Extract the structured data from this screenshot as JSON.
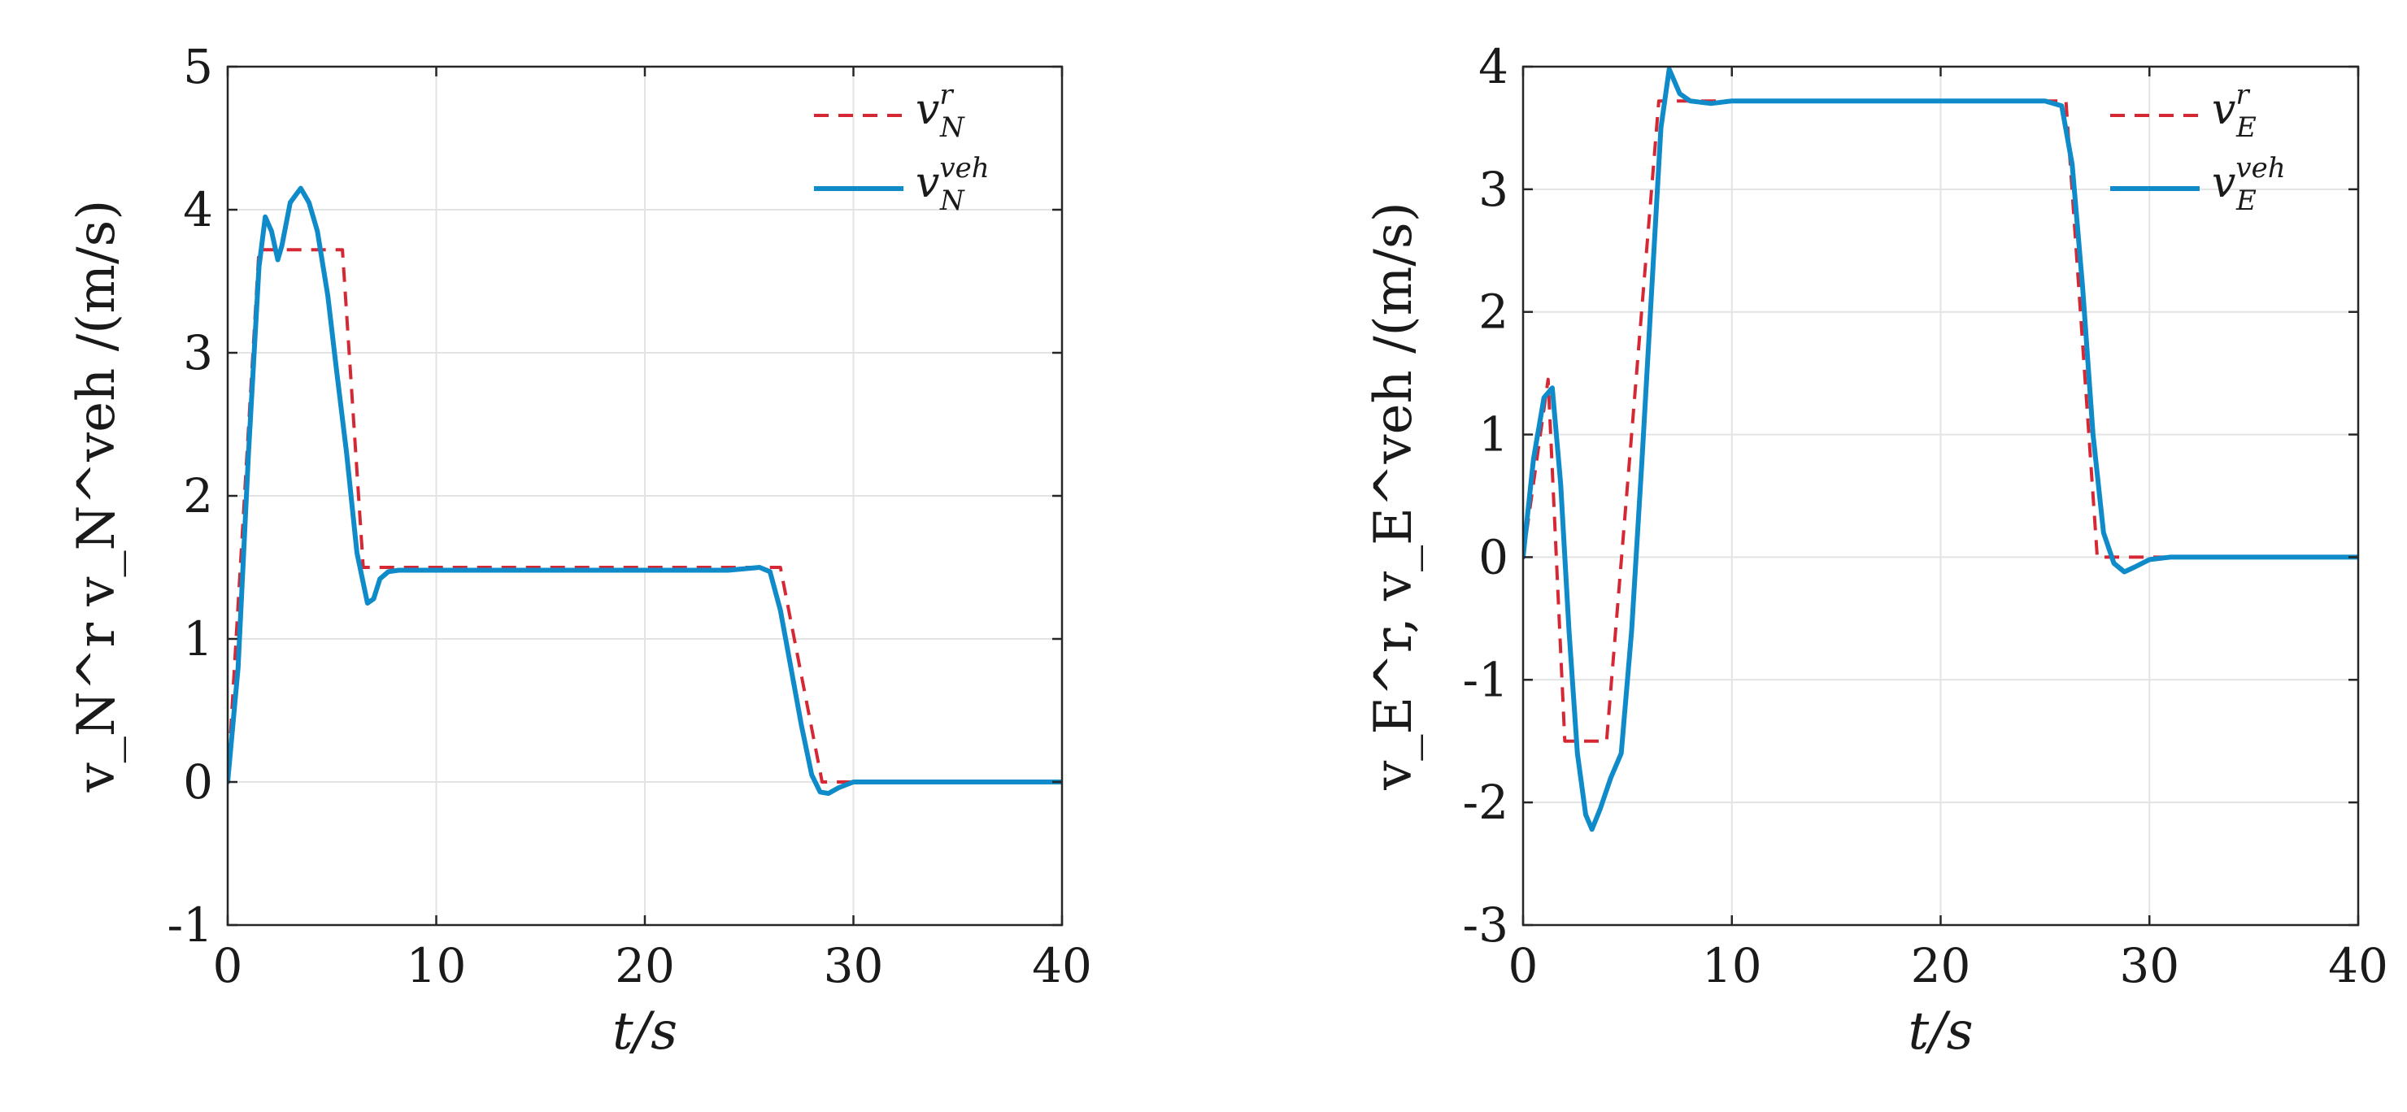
{
  "chart_data": [
    {
      "type": "line",
      "title": "",
      "xlabel": "t/s",
      "ylabel": "v_N^r v_N^veh /(m/s)",
      "xlim": [
        0,
        40
      ],
      "ylim": [
        -1,
        5
      ],
      "xticks": [
        "0",
        "10",
        "20",
        "30",
        "40"
      ],
      "yticks": [
        "-1",
        "0",
        "1",
        "2",
        "3",
        "4",
        "5"
      ],
      "grid": true,
      "legend_position": "top-right",
      "series": [
        {
          "name": "v_N^r",
          "legend_main": "v",
          "legend_sub": "N",
          "legend_sup": "r",
          "style": "dashed",
          "color": "#d62834",
          "x": [
            0,
            1.5,
            2.5,
            5.5,
            6.5,
            26.5,
            28.5,
            40
          ],
          "y": [
            0,
            3.72,
            3.72,
            3.72,
            1.5,
            1.5,
            0,
            0
          ]
        },
        {
          "name": "v_N^veh",
          "legend_main": "v",
          "legend_sub": "N",
          "legend_sup": "veh",
          "style": "solid",
          "color": "#0f8bc9",
          "x": [
            0,
            0.5,
            1.0,
            1.5,
            1.8,
            2.1,
            2.4,
            2.6,
            3.0,
            3.5,
            3.9,
            4.3,
            4.8,
            5.2,
            5.7,
            6.2,
            6.7,
            7.0,
            7.3,
            7.7,
            8.2,
            9,
            10,
            15,
            20,
            24,
            25.5,
            26.0,
            26.5,
            27.0,
            27.5,
            28.0,
            28.4,
            28.8,
            29.3,
            30,
            31,
            32,
            40
          ],
          "y": [
            0,
            0.8,
            2.3,
            3.6,
            3.95,
            3.85,
            3.65,
            3.75,
            4.05,
            4.15,
            4.05,
            3.85,
            3.4,
            2.9,
            2.3,
            1.6,
            1.25,
            1.28,
            1.42,
            1.47,
            1.48,
            1.48,
            1.48,
            1.48,
            1.48,
            1.48,
            1.5,
            1.47,
            1.2,
            0.8,
            0.4,
            0.05,
            -0.07,
            -0.08,
            -0.04,
            0,
            0,
            0,
            0
          ]
        }
      ]
    },
    {
      "type": "line",
      "title": "",
      "xlabel": "t/s",
      "ylabel": "v_E^r, v_E^veh /(m/s)",
      "xlim": [
        0,
        40
      ],
      "ylim": [
        -3,
        4
      ],
      "xticks": [
        "0",
        "10",
        "20",
        "30",
        "40"
      ],
      "yticks": [
        "-3",
        "-2",
        "-1",
        "0",
        "1",
        "2",
        "3",
        "4"
      ],
      "grid": true,
      "legend_position": "top-right",
      "series": [
        {
          "name": "v_E^r",
          "legend_main": "v",
          "legend_sub": "E",
          "legend_sup": "r",
          "style": "dashed",
          "color": "#d62834",
          "x": [
            0,
            1.2,
            2.0,
            4.0,
            6.5,
            7.0,
            25.5,
            26.0,
            27.5,
            40
          ],
          "y": [
            0,
            1.45,
            -1.5,
            -1.5,
            3.72,
            3.72,
            3.72,
            3.72,
            0,
            0
          ]
        },
        {
          "name": "v_E^veh",
          "legend_main": "v",
          "legend_sub": "E",
          "legend_sup": "veh",
          "style": "solid",
          "color": "#0f8bc9",
          "x": [
            0,
            0.5,
            1.0,
            1.4,
            1.8,
            2.2,
            2.6,
            3.0,
            3.3,
            3.7,
            4.2,
            4.7,
            5.2,
            5.7,
            6.2,
            6.6,
            7.0,
            7.5,
            8.0,
            9,
            10,
            15,
            20,
            25,
            25.8,
            26.3,
            26.8,
            27.3,
            27.8,
            28.3,
            28.8,
            29.3,
            30,
            31,
            40
          ],
          "y": [
            0,
            0.8,
            1.3,
            1.38,
            0.6,
            -0.6,
            -1.6,
            -2.1,
            -2.22,
            -2.05,
            -1.8,
            -1.6,
            -0.6,
            0.8,
            2.3,
            3.5,
            3.98,
            3.78,
            3.72,
            3.7,
            3.72,
            3.72,
            3.72,
            3.72,
            3.68,
            3.2,
            2.2,
            1.0,
            0.2,
            -0.05,
            -0.12,
            -0.08,
            -0.02,
            0,
            0
          ]
        }
      ]
    }
  ]
}
